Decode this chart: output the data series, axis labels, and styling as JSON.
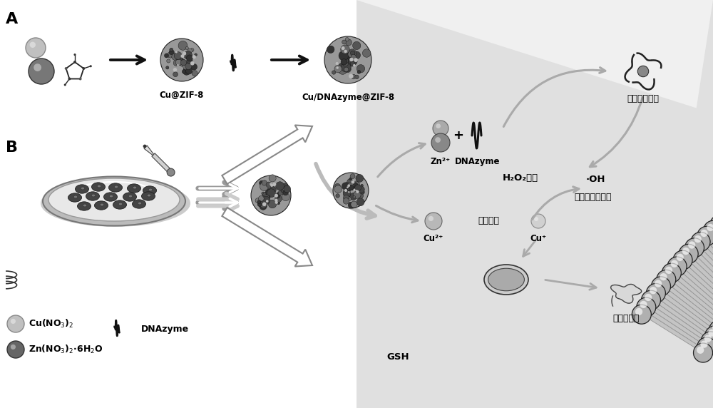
{
  "bg_color": "#ffffff",
  "panel_A_label": "A",
  "panel_B_label": "B",
  "label1": "Cu@ZIF-8",
  "label2": "Cu/DNAzyme@ZIF-8",
  "zn2_label": "Zn²⁺",
  "dnazyme_label": "DNAzyme",
  "cu2_label": "Cu²⁺",
  "cu1_label": "Cu⁺",
  "gsh_label": "GSH",
  "glut_label": "谷肱甘肽",
  "h2o2_label": "H₂O₂升高",
  "oh_label": "·OH",
  "gene_label": "基因沉默治疗",
  "chemo_label": "化学动力学治疗",
  "cuproptosis_label": "铜死亡治疗",
  "legend_dna": "DNAzyme",
  "membrane_color": "#888888",
  "membrane_head_face": "#aaaaaa",
  "membrane_head_edge": "#222222",
  "cell_interior_color": "#d8d8d8",
  "cell_exterior_color": "#f5f5f5",
  "dotted_band_color": "#999999"
}
